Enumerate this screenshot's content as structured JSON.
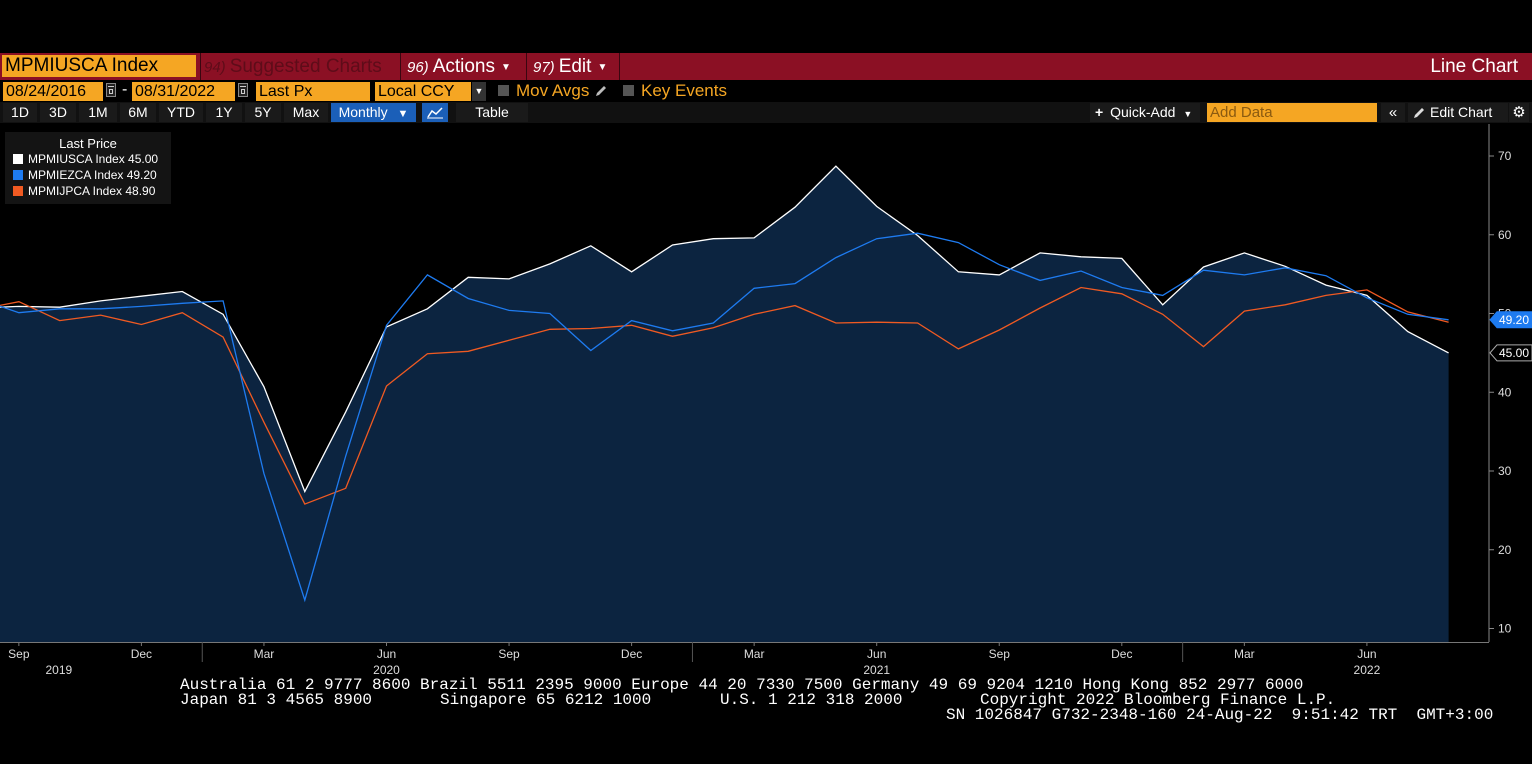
{
  "titlebar": {
    "ticker": "MPMIUSCA Index",
    "suggested_num": "94)",
    "suggested_label": "Suggested Charts",
    "actions_num": "96)",
    "actions_label": "Actions",
    "edit_num": "97)",
    "edit_label": "Edit",
    "chart_type": "Line Chart"
  },
  "controls": {
    "start_date": "08/24/2016",
    "date_sep": "-",
    "end_date": "08/31/2022",
    "price_field": "Last Px",
    "currency": "Local CCY",
    "mov_avgs": "Mov Avgs",
    "key_events": "Key Events"
  },
  "toolbar": {
    "ranges": [
      "1D",
      "3D",
      "1M",
      "6M",
      "YTD",
      "1Y",
      "5Y",
      "Max"
    ],
    "frequency": "Monthly",
    "table_label": "Table",
    "quick_add": "Quick-Add",
    "add_data_placeholder": "Add Data",
    "collapse": "«",
    "edit_chart": "Edit Chart",
    "settings_icon": "gear-icon"
  },
  "legend": {
    "title": "Last Price",
    "entries": [
      {
        "text": "MPMIUSCA Index  45.00",
        "color": "#ffffff"
      },
      {
        "text": "MPMIEZCA Index  49.20",
        "color": "#1e7bf0"
      },
      {
        "text": "MPMIJPCA Index  48.90",
        "color": "#f05a22"
      }
    ]
  },
  "chart_data": {
    "type": "line",
    "x_month_labels": [
      "Sep",
      "Dec",
      "Mar",
      "Jun",
      "Sep",
      "Dec",
      "Mar",
      "Jun",
      "Sep",
      "Dec",
      "Mar",
      "Jun"
    ],
    "x_year_labels": [
      "2019",
      "2020",
      "2021",
      "2022"
    ],
    "yticks": [
      10,
      20,
      30,
      40,
      50,
      60,
      70
    ],
    "ylim": [
      8,
      72
    ],
    "last_value_labels": [
      "49.20",
      "45.00"
    ],
    "x": [
      "2019-08",
      "2019-09",
      "2019-10",
      "2019-11",
      "2019-12",
      "2020-01",
      "2020-02",
      "2020-03",
      "2020-04",
      "2020-05",
      "2020-06",
      "2020-07",
      "2020-08",
      "2020-09",
      "2020-10",
      "2020-11",
      "2020-12",
      "2021-01",
      "2021-02",
      "2021-03",
      "2021-04",
      "2021-05",
      "2021-06",
      "2021-07",
      "2021-08",
      "2021-09",
      "2021-10",
      "2021-11",
      "2021-12",
      "2022-01",
      "2022-02",
      "2022-03",
      "2022-04",
      "2022-05",
      "2022-06",
      "2022-07",
      "2022-08"
    ],
    "series": [
      {
        "name": "MPMIUSCA Index",
        "color": "#ffffff",
        "values": [
          50.7,
          50.9,
          50.8,
          51.6,
          52.2,
          52.8,
          49.9,
          40.7,
          27.4,
          37.5,
          48.3,
          50.6,
          54.6,
          54.4,
          56.3,
          58.6,
          55.3,
          58.7,
          59.5,
          59.6,
          63.5,
          68.7,
          63.6,
          59.9,
          55.3,
          54.9,
          57.7,
          57.2,
          57.0,
          51.1,
          55.9,
          57.7,
          56.0,
          53.6,
          52.3,
          47.7,
          45.0
        ]
      },
      {
        "name": "MPMIEZCA Index",
        "color": "#1e7bf0",
        "values": [
          51.9,
          50.1,
          50.6,
          50.6,
          50.9,
          51.3,
          51.6,
          29.7,
          13.6,
          31.9,
          48.5,
          54.9,
          51.9,
          50.4,
          50.0,
          45.3,
          49.1,
          47.8,
          48.8,
          53.2,
          53.8,
          57.1,
          59.5,
          60.2,
          59.0,
          56.2,
          54.2,
          55.4,
          53.3,
          52.3,
          55.5,
          54.9,
          55.8,
          54.8,
          52.0,
          49.9,
          49.2
        ]
      },
      {
        "name": "MPMIJPCA Index",
        "color": "#f05a22",
        "values": [
          50.5,
          51.5,
          49.1,
          49.8,
          48.6,
          50.1,
          47.0,
          36.2,
          25.8,
          27.8,
          40.8,
          44.9,
          45.2,
          46.6,
          48.0,
          48.1,
          48.5,
          47.1,
          48.2,
          49.9,
          51.0,
          48.8,
          48.9,
          48.8,
          45.5,
          47.9,
          50.7,
          53.3,
          52.5,
          49.9,
          45.8,
          50.3,
          51.1,
          52.3,
          53.0,
          50.2,
          48.9
        ]
      }
    ]
  },
  "footer": {
    "line1": "Australia 61 2 9777 8600 Brazil 5511 2395 9000 Europe 44 20 7330 7500 Germany 49 69 9204 1210 Hong Kong 852 2977 6000",
    "line2a": "Japan 81 3 4565 8900",
    "line2b": "Singapore 65 6212 1000",
    "line2c": "U.S. 1 212 318 2000",
    "line2d": "Copyright 2022 Bloomberg Finance L.P.",
    "line3": "SN 1026847 G732-2348-160 24-Aug-22  9:51:42 TRT  GMT+3:00"
  }
}
